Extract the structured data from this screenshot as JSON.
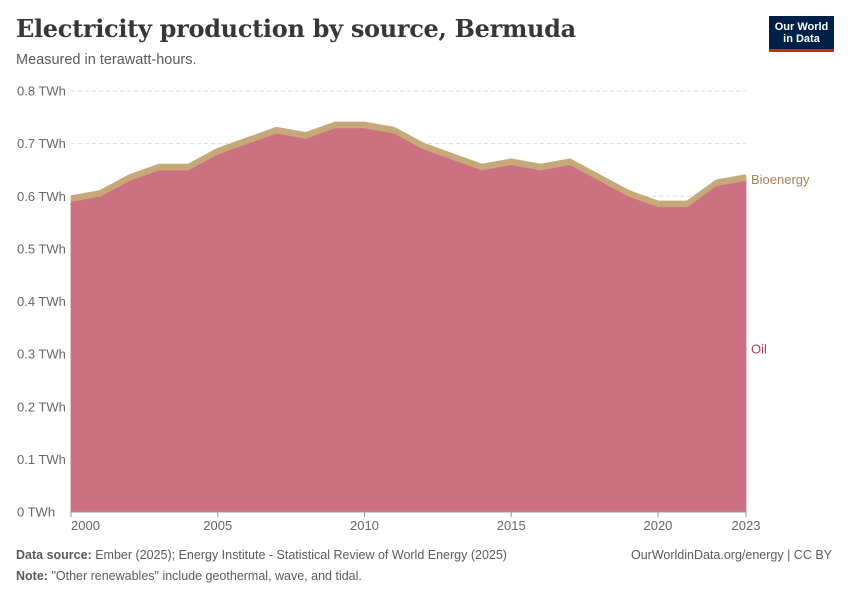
{
  "header": {
    "title": "Electricity production by source, Bermuda",
    "subtitle": "Measured in terawatt-hours."
  },
  "logo": {
    "line1": "Our World",
    "line2": "in Data"
  },
  "footer": {
    "source_label": "Data source:",
    "source_text": "Ember (2025); Energy Institute - Statistical Review of World Energy (2025)",
    "note_label": "Note:",
    "note_text": "\"Other renewables\" include geothermal, wave, and tidal.",
    "url": "OurWorldinData.org/energy | CC BY"
  },
  "chart_data": {
    "type": "area",
    "stacked": true,
    "title": "Electricity production by source, Bermuda",
    "unit": "TWh",
    "x": [
      2000,
      2001,
      2002,
      2003,
      2004,
      2005,
      2006,
      2007,
      2008,
      2009,
      2010,
      2011,
      2012,
      2013,
      2014,
      2015,
      2016,
      2017,
      2018,
      2019,
      2020,
      2021,
      2022,
      2023
    ],
    "series": [
      {
        "name": "Oil",
        "color": "#cc7182",
        "values": [
          0.59,
          0.6,
          0.63,
          0.65,
          0.65,
          0.68,
          0.7,
          0.72,
          0.71,
          0.73,
          0.73,
          0.72,
          0.69,
          0.67,
          0.65,
          0.66,
          0.65,
          0.66,
          0.63,
          0.6,
          0.58,
          0.58,
          0.62,
          0.63
        ]
      },
      {
        "name": "Bioenergy",
        "color": "#c6a879",
        "values": [
          0.008,
          0.008,
          0.008,
          0.008,
          0.008,
          0.008,
          0.008,
          0.008,
          0.008,
          0.008,
          0.008,
          0.008,
          0.008,
          0.008,
          0.008,
          0.008,
          0.008,
          0.008,
          0.008,
          0.008,
          0.008,
          0.008,
          0.008,
          0.008
        ]
      }
    ],
    "legend_colors": {
      "Oil": "#b13b57",
      "Bioenergy": "#a7825a"
    },
    "ylim": [
      0,
      0.8
    ],
    "y_ticks": [
      0,
      0.1,
      0.2,
      0.3,
      0.4,
      0.5,
      0.6,
      0.7,
      0.8
    ],
    "y_tick_labels": [
      "0 TWh",
      "0.1 TWh",
      "0.2 TWh",
      "0.3 TWh",
      "0.4 TWh",
      "0.5 TWh",
      "0.6 TWh",
      "0.7 TWh",
      "0.8 TWh"
    ],
    "x_ticks": [
      2000,
      2005,
      2010,
      2015,
      2020,
      2023
    ],
    "x_tick_labels": [
      "2000",
      "2005",
      "2010",
      "2015",
      "2020",
      "2023"
    ],
    "xlabel": "",
    "ylabel": "",
    "legend": "inline-right",
    "grid": true
  }
}
